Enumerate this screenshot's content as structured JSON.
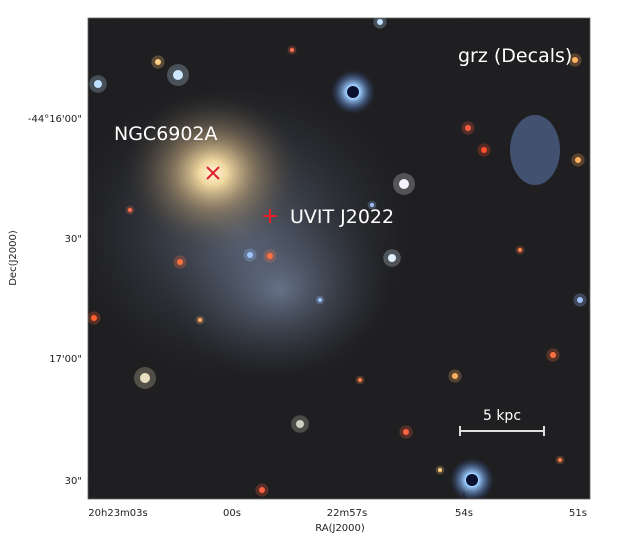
{
  "figure": {
    "band_label": "grz (Decals)",
    "annotations": [
      "NGC6902A",
      "UVIT J2022"
    ],
    "scale_bar": "5 kpc",
    "y_axis": {
      "label": "Dec(J2000)",
      "ticks": [
        "-44°16'00\"",
        "30\"",
        "17'00\"",
        "30\""
      ]
    },
    "x_axis": {
      "label": "RA(J2000)",
      "ticks": [
        "20h23m03s",
        "00s",
        "22m57s",
        "54s",
        "51s"
      ]
    }
  }
}
